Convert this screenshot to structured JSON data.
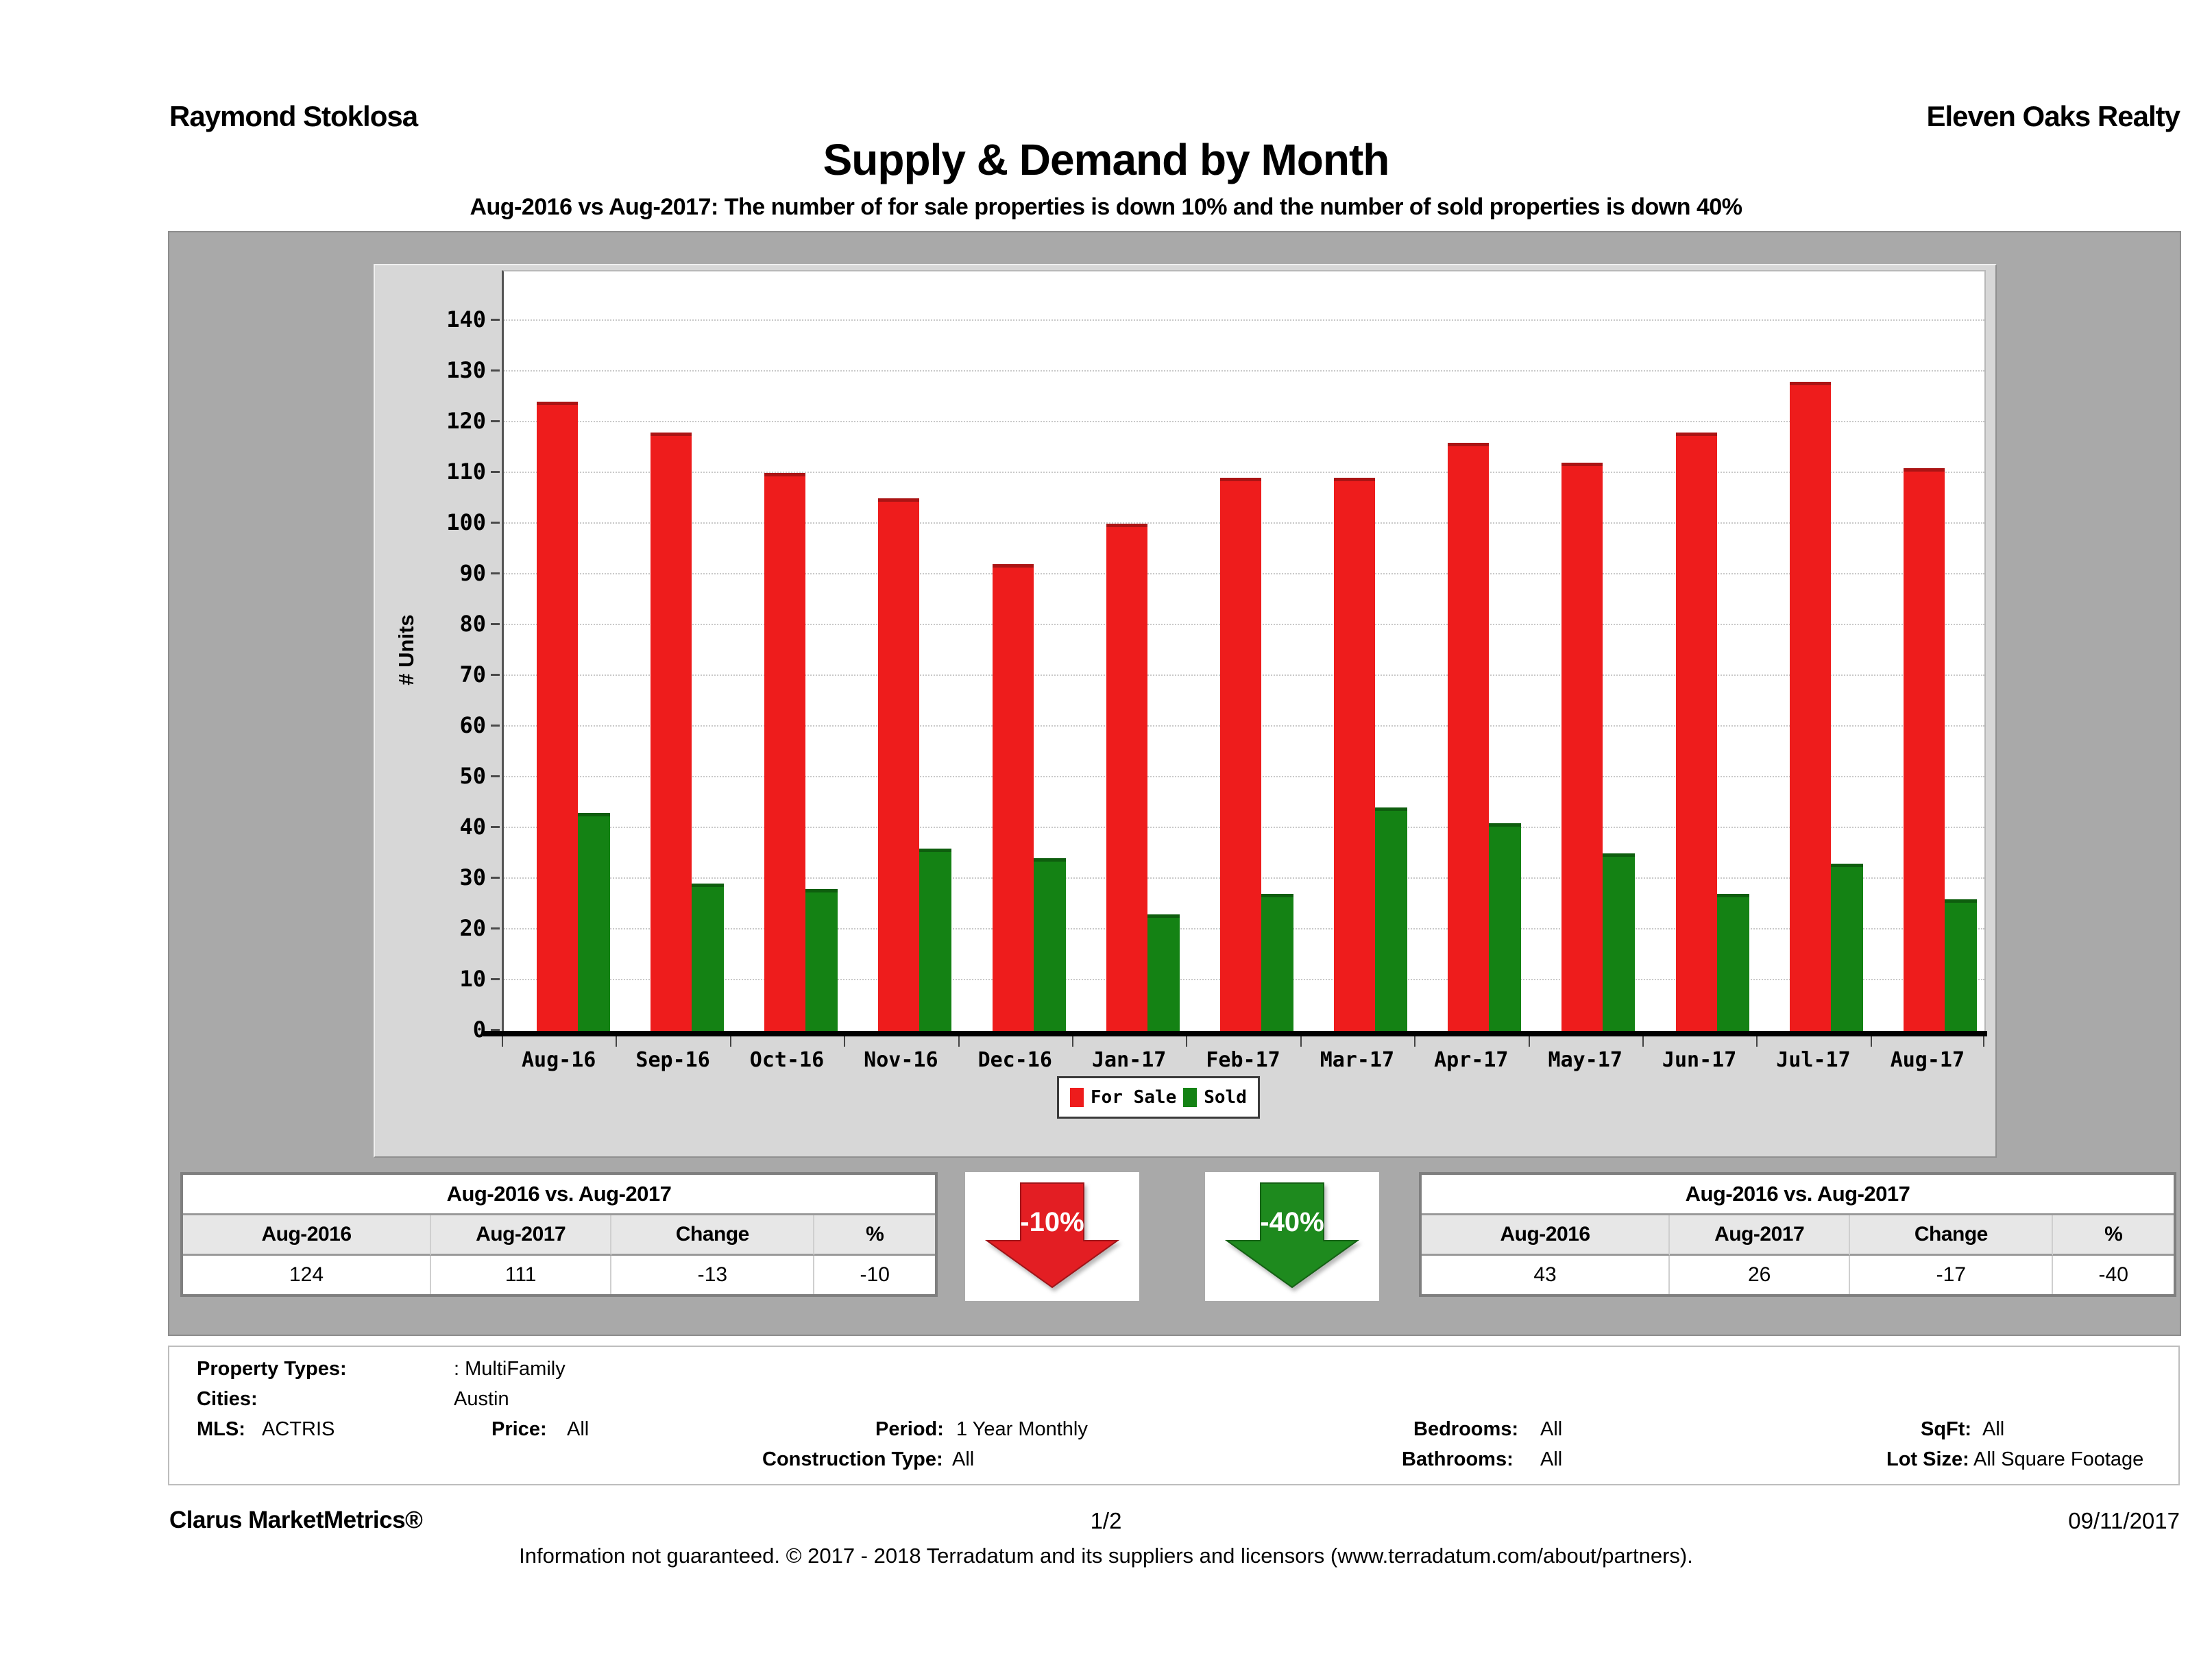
{
  "header": {
    "agent": "Raymond Stoklosa",
    "company": "Eleven Oaks Realty"
  },
  "title": "Supply & Demand by Month",
  "subtitle": "Aug-2016 vs Aug-2017: The number of for sale properties is down 10% and the number of sold properties is down 40%",
  "chart_data": {
    "type": "bar",
    "title": "Supply & Demand by Month",
    "categories": [
      "Aug-16",
      "Sep-16",
      "Oct-16",
      "Nov-16",
      "Dec-16",
      "Jan-17",
      "Feb-17",
      "Mar-17",
      "Apr-17",
      "May-17",
      "Jun-17",
      "Jul-17",
      "Aug-17"
    ],
    "series": [
      {
        "name": "For Sale",
        "color": "#ee1c1c",
        "values": [
          124,
          118,
          110,
          105,
          92,
          100,
          109,
          109,
          116,
          112,
          118,
          128,
          111
        ]
      },
      {
        "name": "Sold",
        "color": "#148214",
        "values": [
          43,
          29,
          28,
          36,
          34,
          23,
          27,
          44,
          41,
          35,
          27,
          33,
          26
        ]
      }
    ],
    "xlabel": "",
    "ylabel": "# Units",
    "ylim": [
      0,
      150
    ],
    "ytick_max": 140,
    "ytick_step": 10,
    "grid": true,
    "legend_position": "bottom-center"
  },
  "comparison_left": {
    "title": "Aug-2016 vs. Aug-2017",
    "columns": [
      "Aug-2016",
      "Aug-2017",
      "Change",
      "%"
    ],
    "values": [
      "124",
      "111",
      "-13",
      "-10"
    ]
  },
  "comparison_right": {
    "title": "Aug-2016 vs. Aug-2017",
    "columns": [
      "Aug-2016",
      "Aug-2017",
      "Change",
      "%"
    ],
    "values": [
      "43",
      "26",
      "-17",
      "-40"
    ]
  },
  "arrows": {
    "for_sale_change": "-10%",
    "for_sale_color": "#e31e23",
    "sold_change": "-40%",
    "sold_color": "#1e8a1e"
  },
  "filters": {
    "property_types_label": "Property Types:",
    "property_types_value": ": MultiFamily",
    "cities_label": "Cities:",
    "cities_value": "Austin",
    "mls_label": "MLS:",
    "mls_value": "ACTRIS",
    "price_label": "Price:",
    "price_value": "All",
    "period_label": "Period:",
    "period_value": "1 Year Monthly",
    "bedrooms_label": "Bedrooms:",
    "bedrooms_value": "All",
    "sqft_label": "SqFt:",
    "sqft_value": "All",
    "construction_label": "Construction Type:",
    "construction_value": "All",
    "bathrooms_label": "Bathrooms:",
    "bathrooms_value": "All",
    "lot_size_label": "Lot Size:",
    "lot_size_value": "All Square Footage"
  },
  "footer": {
    "brand": "Clarus MarketMetrics®",
    "page": "1/2",
    "date": "09/11/2017",
    "disclaimer": "Information not guaranteed. © 2017 - 2018 Terradatum and its suppliers and licensors (www.terradatum.com/about/partners)."
  }
}
